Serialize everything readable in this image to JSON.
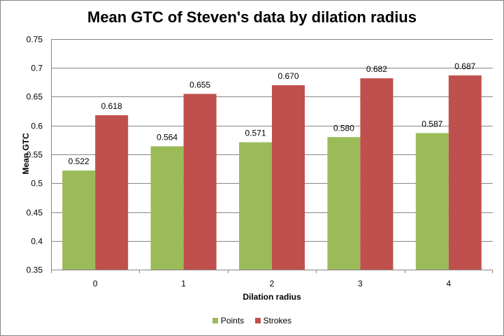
{
  "chart_data": {
    "type": "bar",
    "title": "Mean GTC of Steven's data by dilation radius",
    "xlabel": "Dilation  radius",
    "ylabel": "Mean GTC",
    "categories": [
      "0",
      "1",
      "2",
      "3",
      "4"
    ],
    "ylim": [
      0.35,
      0.75
    ],
    "yticks": [
      "0.35",
      "0.4",
      "0.45",
      "0.5",
      "0.55",
      "0.6",
      "0.65",
      "0.7",
      "0.75"
    ],
    "grid": true,
    "legend_position": "bottom",
    "series": [
      {
        "name": "Points",
        "color": "#9bbb59",
        "values": [
          0.522,
          0.564,
          0.571,
          0.58,
          0.587
        ],
        "labels": [
          "0.522",
          "0.564",
          "0.571",
          "0.580",
          "0.587"
        ]
      },
      {
        "name": "Strokes",
        "color": "#c0504d",
        "values": [
          0.618,
          0.655,
          0.67,
          0.682,
          0.687
        ],
        "labels": [
          "0.618",
          "0.655",
          "0.670",
          "0.682",
          "0.687"
        ]
      }
    ]
  }
}
